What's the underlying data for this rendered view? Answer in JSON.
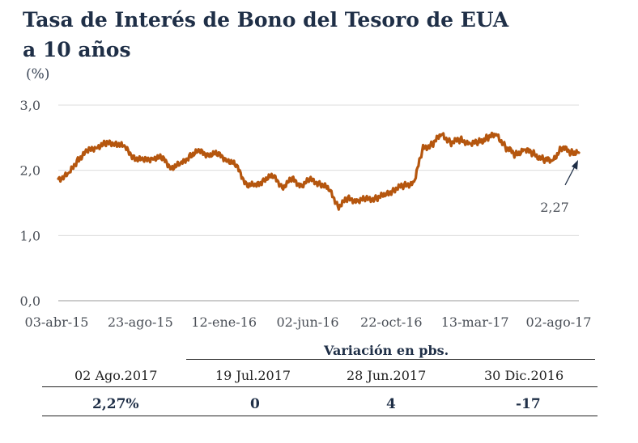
{
  "title_line1": "Tasa de Interés de Bono del Tesoro de EUA",
  "title_line2": "a 10 años",
  "unit": "(%)",
  "chart_data": {
    "type": "line",
    "title": "Tasa de Interés de Bono del Tesoro de EUA a 10 años",
    "ylabel": "(%)",
    "ylim": [
      0,
      3
    ],
    "yticks": [
      "0,0",
      "1,0",
      "2,0",
      "3,0"
    ],
    "xtick_labels": [
      "03-abr-15",
      "23-ago-15",
      "12-ene-16",
      "02-jun-16",
      "22-oct-16",
      "13-mar-17",
      "02-ago-17"
    ],
    "grid": "horizontal",
    "line_color": "#b5560e",
    "series": [
      {
        "x": [
          "2015-04-03",
          "2015-04-20",
          "2015-05-05",
          "2015-05-20",
          "2015-06-05",
          "2015-06-20",
          "2015-07-05",
          "2015-07-20",
          "2015-08-05",
          "2015-08-20",
          "2015-09-05",
          "2015-09-20",
          "2015-10-05",
          "2015-10-20",
          "2015-11-05",
          "2015-11-20",
          "2015-12-05",
          "2015-12-20",
          "2016-01-05",
          "2016-01-20",
          "2016-02-05",
          "2016-02-20",
          "2016-03-05",
          "2016-03-20",
          "2016-04-05",
          "2016-04-20",
          "2016-05-05",
          "2016-05-20",
          "2016-06-05",
          "2016-06-20",
          "2016-07-05",
          "2016-07-20",
          "2016-08-05",
          "2016-08-20",
          "2016-09-05",
          "2016-09-20",
          "2016-10-05",
          "2016-10-20",
          "2016-11-05",
          "2016-11-20",
          "2016-12-05",
          "2016-12-20",
          "2017-01-05",
          "2017-01-20",
          "2017-02-05",
          "2017-02-20",
          "2017-03-05",
          "2017-03-20",
          "2017-04-05",
          "2017-04-20",
          "2017-05-05",
          "2017-05-20",
          "2017-06-05",
          "2017-06-20",
          "2017-07-05",
          "2017-07-20",
          "2017-08-02"
        ],
        "y": [
          1.87,
          1.93,
          2.17,
          2.28,
          2.37,
          2.4,
          2.43,
          2.35,
          2.2,
          2.14,
          2.2,
          2.18,
          2.05,
          2.08,
          2.24,
          2.28,
          2.25,
          2.24,
          2.17,
          2.05,
          1.79,
          1.75,
          1.87,
          1.9,
          1.75,
          1.86,
          1.77,
          1.85,
          1.8,
          1.69,
          1.45,
          1.56,
          1.54,
          1.55,
          1.58,
          1.62,
          1.72,
          1.76,
          1.82,
          2.33,
          2.4,
          2.55,
          2.43,
          2.47,
          2.41,
          2.43,
          2.5,
          2.55,
          2.35,
          2.24,
          2.32,
          2.25,
          2.16,
          2.15,
          2.35,
          2.28,
          2.27
        ]
      }
    ],
    "annotations": [
      {
        "text": "2,27",
        "x": "2017-08-02",
        "y": 2.27
      }
    ]
  },
  "table": {
    "variation_header": "Variación en pbs.",
    "headers": [
      "02 Ago.2017",
      "19 Jul.2017",
      "28 Jun.2017",
      "30 Dic.2016"
    ],
    "values": [
      "2,27%",
      "0",
      "4",
      "-17"
    ]
  }
}
